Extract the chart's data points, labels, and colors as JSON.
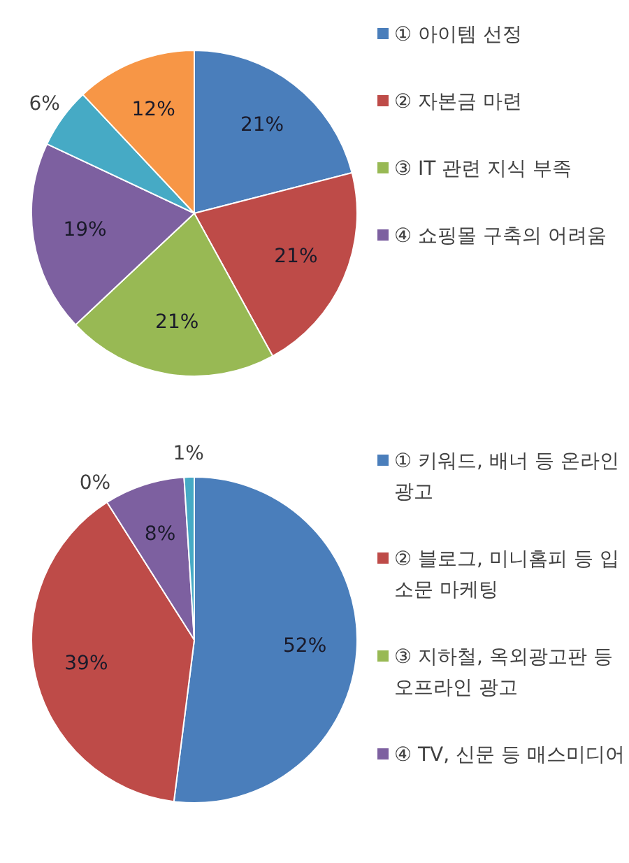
{
  "chart_data": [
    {
      "type": "pie",
      "categories": [
        "① 아이템 선정",
        "② 자본금 마련",
        "③ IT 관련 지식 부족",
        "④ 쇼핑몰 구축의 어려움",
        null,
        null
      ],
      "values": [
        21,
        21,
        21,
        19,
        6,
        12
      ],
      "colors": [
        "#4a7ebb",
        "#be4b48",
        "#98b954",
        "#7d60a0",
        "#46aac5",
        "#f79646"
      ],
      "value_labels": [
        "21%",
        "21%",
        "21%",
        "19%",
        "6%",
        "12%"
      ],
      "legend": "right"
    },
    {
      "type": "pie",
      "categories": [
        "① 키워드, 배너 등 온라인 광고",
        "② 블로그, 미니홈피 등 입소문 마케팅",
        "③ 지하철, 옥외광고판 등 오프라인 광고",
        "④ TV, 신문 등 매스미디어",
        null
      ],
      "values": [
        52,
        39,
        0,
        8,
        1
      ],
      "colors": [
        "#4a7ebb",
        "#be4b48",
        "#98b954",
        "#7d60a0",
        "#46aac5"
      ],
      "value_labels": [
        "52%",
        "39%",
        "0%",
        "8%",
        "1%"
      ],
      "legend": "right"
    }
  ]
}
